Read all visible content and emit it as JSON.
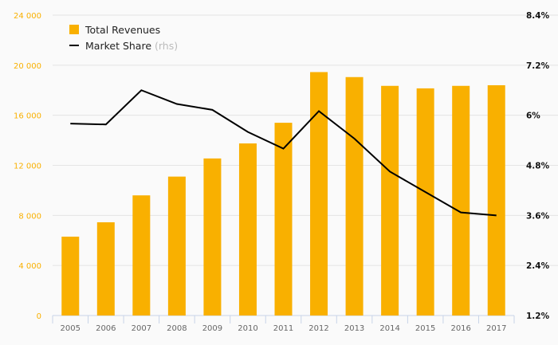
{
  "chart_data": {
    "type": "bar+line",
    "categories": [
      "2005",
      "2006",
      "2007",
      "2008",
      "2009",
      "2010",
      "2011",
      "2012",
      "2013",
      "2014",
      "2015",
      "2016",
      "2017"
    ],
    "series": [
      {
        "name": "Total Revenues",
        "type": "bar",
        "axis": "left",
        "color": "#f9b000",
        "values": [
          6300,
          7450,
          9600,
          11100,
          12550,
          13750,
          15400,
          19450,
          19050,
          18350,
          18150,
          18350,
          18400
        ]
      },
      {
        "name": "Market Share",
        "suffix": "(rhs)",
        "type": "line",
        "axis": "right",
        "color": "#000000",
        "values": [
          5.8,
          5.78,
          6.6,
          6.27,
          6.13,
          5.6,
          5.2,
          6.1,
          5.44,
          4.65,
          4.16,
          3.67,
          3.6
        ]
      }
    ],
    "ylim": [
      0,
      24000
    ],
    "yticks": [
      "0",
      "4 000",
      "8 000",
      "12 000",
      "16 000",
      "20 000",
      "24 000"
    ],
    "y2lim": [
      1.2,
      8.4
    ],
    "y2ticks": [
      "1.2%",
      "2.4%",
      "3.6%",
      "4.8%",
      "6%",
      "7.2%",
      "8.4%"
    ],
    "legend": "top-left",
    "grid": true
  }
}
